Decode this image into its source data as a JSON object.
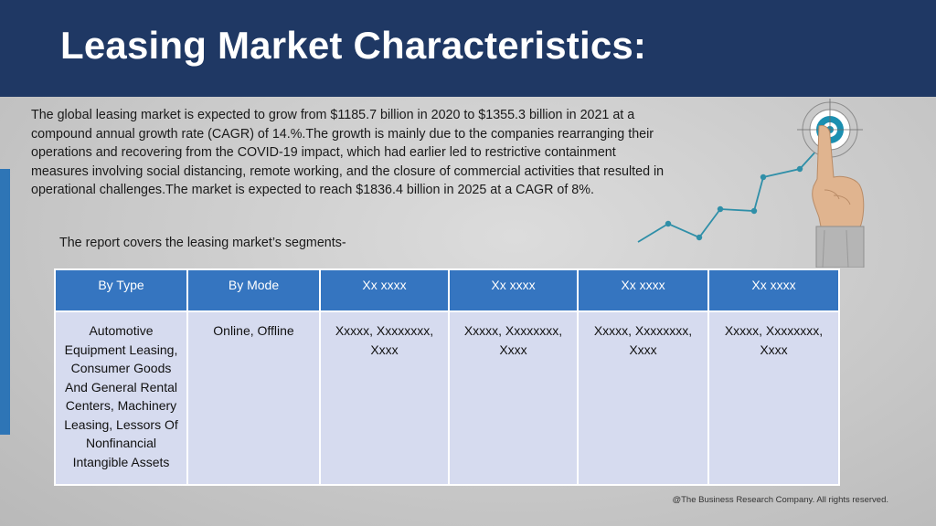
{
  "title": "Leasing Market Characteristics:",
  "paragraph": "The global leasing market is expected to grow from $1185.7 billion in 2020 to $1355.3 billion in 2021 at a compound annual growth rate (CAGR) of 14.%.The growth is mainly due to the companies rearranging their operations and recovering from the COVID-19 impact, which had earlier led to restrictive containment measures involving social distancing, remote working, and the closure of commercial activities that resulted in operational challenges.The market is expected to reach $1836.4 billion in 2025 at a CAGR of 8%.",
  "segments_intro": "The report covers the leasing market’s segments-",
  "table": {
    "headers": [
      "By Type",
      "By Mode",
      "Xx xxxx",
      "Xx xxxx",
      "Xx xxxx",
      "Xx xxxx"
    ],
    "cells": [
      "Automotive Equipment Leasing, Consumer Goods And General Rental Centers, Machinery Leasing, Lessors Of Nonfinancial Intangible Assets",
      "Online, Offline",
      "Xxxxx, Xxxxxxxx, Xxxx",
      "Xxxxx, Xxxxxxxx, Xxxx",
      "Xxxxx, Xxxxxxxx, Xxxx",
      "Xxxxx, Xxxxxxxx, Xxxx"
    ]
  },
  "footer": "@The Business Research Company. All rights reserved.",
  "colors": {
    "header_bg": "#1f3864",
    "table_header": "#3575c0",
    "table_cell": "#d6dbef",
    "accent": "#2e75b6",
    "line_chart": "#2f8fa8"
  },
  "icons": [
    "target-icon",
    "pointing-hand-icon",
    "growth-line-icon"
  ]
}
